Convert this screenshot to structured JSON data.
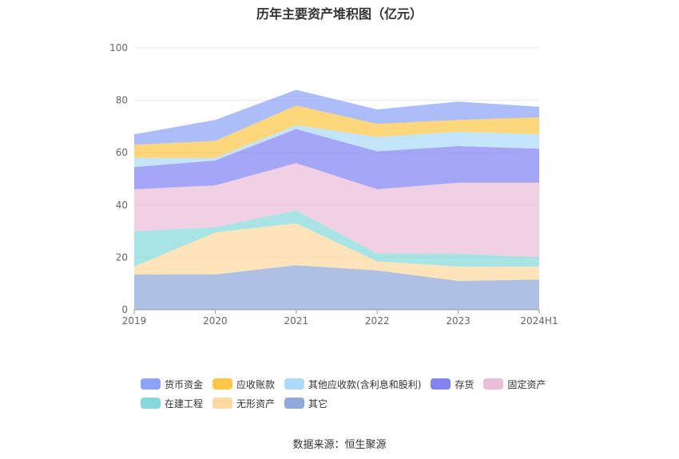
{
  "chart_data": {
    "type": "area",
    "title": "历年主要资产堆积图（亿元）",
    "categories": [
      "2019",
      "2020",
      "2021",
      "2022",
      "2023",
      "2024H1"
    ],
    "ylim": [
      0,
      100
    ],
    "yticks": [
      0,
      20,
      40,
      60,
      80,
      100
    ],
    "grid": true,
    "stacked": true,
    "legend_position": "bottom",
    "series": [
      {
        "name": "其它",
        "color": "#8fa9db",
        "values": [
          13.5,
          13.5,
          17.0,
          15.0,
          11.0,
          11.5
        ]
      },
      {
        "name": "无形资产",
        "color": "#fdd9a0",
        "values": [
          3.0,
          16.0,
          16.0,
          3.5,
          5.5,
          5.0
        ]
      },
      {
        "name": "在建工程",
        "color": "#86d9d9",
        "values": [
          13.5,
          2.0,
          5.0,
          3.0,
          5.0,
          3.5
        ]
      },
      {
        "name": "固定资产",
        "color": "#ebbed9",
        "values": [
          16.0,
          16.0,
          18.0,
          24.5,
          27.0,
          28.5
        ]
      },
      {
        "name": "存货",
        "color": "#8383f2",
        "values": [
          8.5,
          9.5,
          13.0,
          14.5,
          14.0,
          13.0
        ]
      },
      {
        "name": "其他应收款(含利息和股利)",
        "color": "#abdbf8",
        "values": [
          3.5,
          1.0,
          1.5,
          5.5,
          5.5,
          5.5
        ]
      },
      {
        "name": "应收账款",
        "color": "#fdc84a",
        "values": [
          5.0,
          6.5,
          7.5,
          5.0,
          4.5,
          6.5
        ]
      },
      {
        "name": "货币资金",
        "color": "#8da3f7",
        "values": [
          4.0,
          8.0,
          6.0,
          5.5,
          7.0,
          4.0
        ]
      }
    ],
    "legend_order": [
      "货币资金",
      "应收账款",
      "其他应收款(含利息和股利)",
      "存货",
      "固定资产",
      "在建工程",
      "无形资产",
      "其它"
    ]
  },
  "source_text": "数据来源：恒生聚源"
}
